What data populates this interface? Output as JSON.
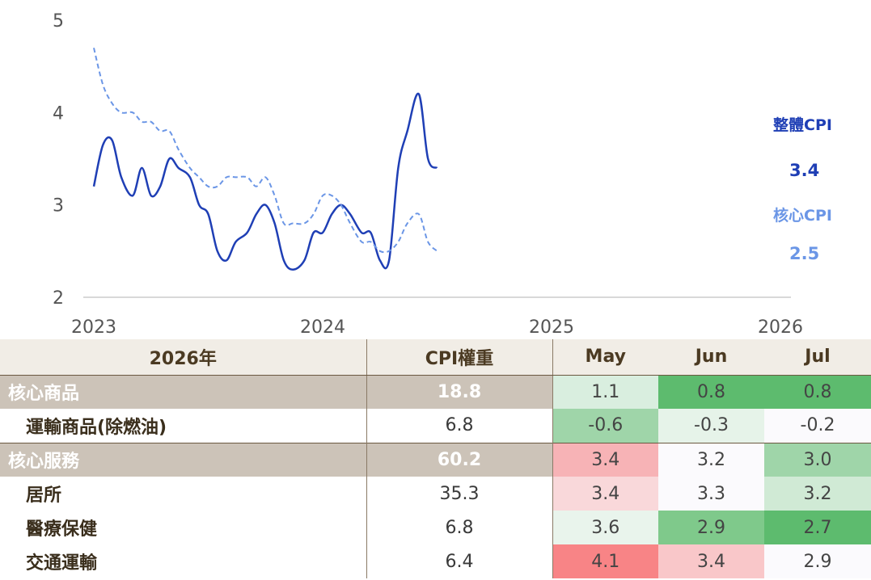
{
  "chart_data": {
    "type": "line",
    "xlim": [
      2023,
      2026
    ],
    "ylim": [
      2,
      5
    ],
    "y_ticks": [
      2,
      3,
      4,
      5
    ],
    "x_ticks": [
      "2023",
      "2024",
      "2025",
      "2026"
    ],
    "grid": false,
    "series": [
      {
        "name": "整體CPI",
        "color": "#1f3fb5",
        "style": "solid",
        "end_label": "3.4",
        "points": [
          [
            2023.0,
            3.2
          ],
          [
            2023.04,
            3.65
          ],
          [
            2023.08,
            3.7
          ],
          [
            2023.12,
            3.3
          ],
          [
            2023.17,
            3.1
          ],
          [
            2023.21,
            3.4
          ],
          [
            2023.25,
            3.1
          ],
          [
            2023.29,
            3.2
          ],
          [
            2023.33,
            3.5
          ],
          [
            2023.37,
            3.4
          ],
          [
            2023.42,
            3.3
          ],
          [
            2023.46,
            3.0
          ],
          [
            2023.5,
            2.9
          ],
          [
            2023.54,
            2.5
          ],
          [
            2023.58,
            2.4
          ],
          [
            2023.62,
            2.6
          ],
          [
            2023.67,
            2.7
          ],
          [
            2023.71,
            2.9
          ],
          [
            2023.75,
            3.0
          ],
          [
            2023.79,
            2.8
          ],
          [
            2023.83,
            2.4
          ],
          [
            2023.87,
            2.3
          ],
          [
            2023.92,
            2.4
          ],
          [
            2023.96,
            2.7
          ],
          [
            2024.0,
            2.7
          ],
          [
            2024.04,
            2.9
          ],
          [
            2024.08,
            3.0
          ],
          [
            2024.12,
            2.9
          ],
          [
            2024.17,
            2.7
          ],
          [
            2024.21,
            2.7
          ],
          [
            2024.25,
            2.4
          ],
          [
            2024.29,
            2.4
          ],
          [
            2024.33,
            3.4
          ],
          [
            2024.37,
            3.8
          ],
          [
            2024.42,
            4.2
          ],
          [
            2024.46,
            3.5
          ],
          [
            2024.5,
            3.4
          ]
        ]
      },
      {
        "name": "核心CPI",
        "color": "#6b96e6",
        "style": "dashed",
        "end_label": "2.5",
        "points": [
          [
            2023.0,
            4.7
          ],
          [
            2023.04,
            4.3
          ],
          [
            2023.08,
            4.1
          ],
          [
            2023.12,
            4.0
          ],
          [
            2023.17,
            4.0
          ],
          [
            2023.21,
            3.9
          ],
          [
            2023.25,
            3.9
          ],
          [
            2023.29,
            3.8
          ],
          [
            2023.33,
            3.8
          ],
          [
            2023.37,
            3.6
          ],
          [
            2023.42,
            3.4
          ],
          [
            2023.46,
            3.3
          ],
          [
            2023.5,
            3.2
          ],
          [
            2023.54,
            3.2
          ],
          [
            2023.58,
            3.3
          ],
          [
            2023.62,
            3.3
          ],
          [
            2023.67,
            3.3
          ],
          [
            2023.71,
            3.2
          ],
          [
            2023.75,
            3.3
          ],
          [
            2023.79,
            3.1
          ],
          [
            2023.83,
            2.8
          ],
          [
            2023.87,
            2.8
          ],
          [
            2023.92,
            2.8
          ],
          [
            2023.96,
            2.9
          ],
          [
            2024.0,
            3.1
          ],
          [
            2024.04,
            3.1
          ],
          [
            2024.08,
            3.0
          ],
          [
            2024.12,
            2.8
          ],
          [
            2024.17,
            2.6
          ],
          [
            2024.21,
            2.6
          ],
          [
            2024.25,
            2.5
          ],
          [
            2024.29,
            2.5
          ],
          [
            2024.33,
            2.6
          ],
          [
            2024.37,
            2.8
          ],
          [
            2024.42,
            2.9
          ],
          [
            2024.46,
            2.6
          ],
          [
            2024.5,
            2.5
          ]
        ]
      }
    ]
  },
  "table": {
    "headers": [
      "2026年",
      "CPI權重",
      "May",
      "Jun",
      "Jul"
    ],
    "rows": [
      {
        "name": "核心商品",
        "weight": "18.8",
        "group": true,
        "values": [
          "1.1",
          "0.8",
          "0.8"
        ],
        "colors": [
          "#d9eedf",
          "#5dbb6e",
          "#5dbb6e"
        ]
      },
      {
        "name": "運輸商品(除燃油)",
        "weight": "6.8",
        "group": false,
        "values": [
          "-0.6",
          "-0.3",
          "-0.2"
        ],
        "colors": [
          "#9fd5a9",
          "#e6f3e9",
          "#fbfafd"
        ]
      },
      {
        "name": "核心服務",
        "weight": "60.2",
        "group": true,
        "values": [
          "3.4",
          "3.2",
          "3.0"
        ],
        "colors": [
          "#f7b3b6",
          "#fbfafd",
          "#9fd5a9"
        ]
      },
      {
        "name": "居所",
        "weight": "35.3",
        "group": false,
        "values": [
          "3.4",
          "3.3",
          "3.2"
        ],
        "colors": [
          "#f9d8da",
          "#fbfafd",
          "#d0ead5"
        ]
      },
      {
        "name": "醫療保健",
        "weight": "6.8",
        "group": false,
        "values": [
          "3.6",
          "2.9",
          "2.7"
        ],
        "colors": [
          "#e9f4ec",
          "#7fc98b",
          "#5dbb6e"
        ]
      },
      {
        "name": "交通運輸",
        "weight": "6.4",
        "group": false,
        "values": [
          "4.1",
          "3.4",
          "2.9"
        ],
        "colors": [
          "#f88486",
          "#f9c7c9",
          "#fbfafd"
        ]
      }
    ]
  }
}
